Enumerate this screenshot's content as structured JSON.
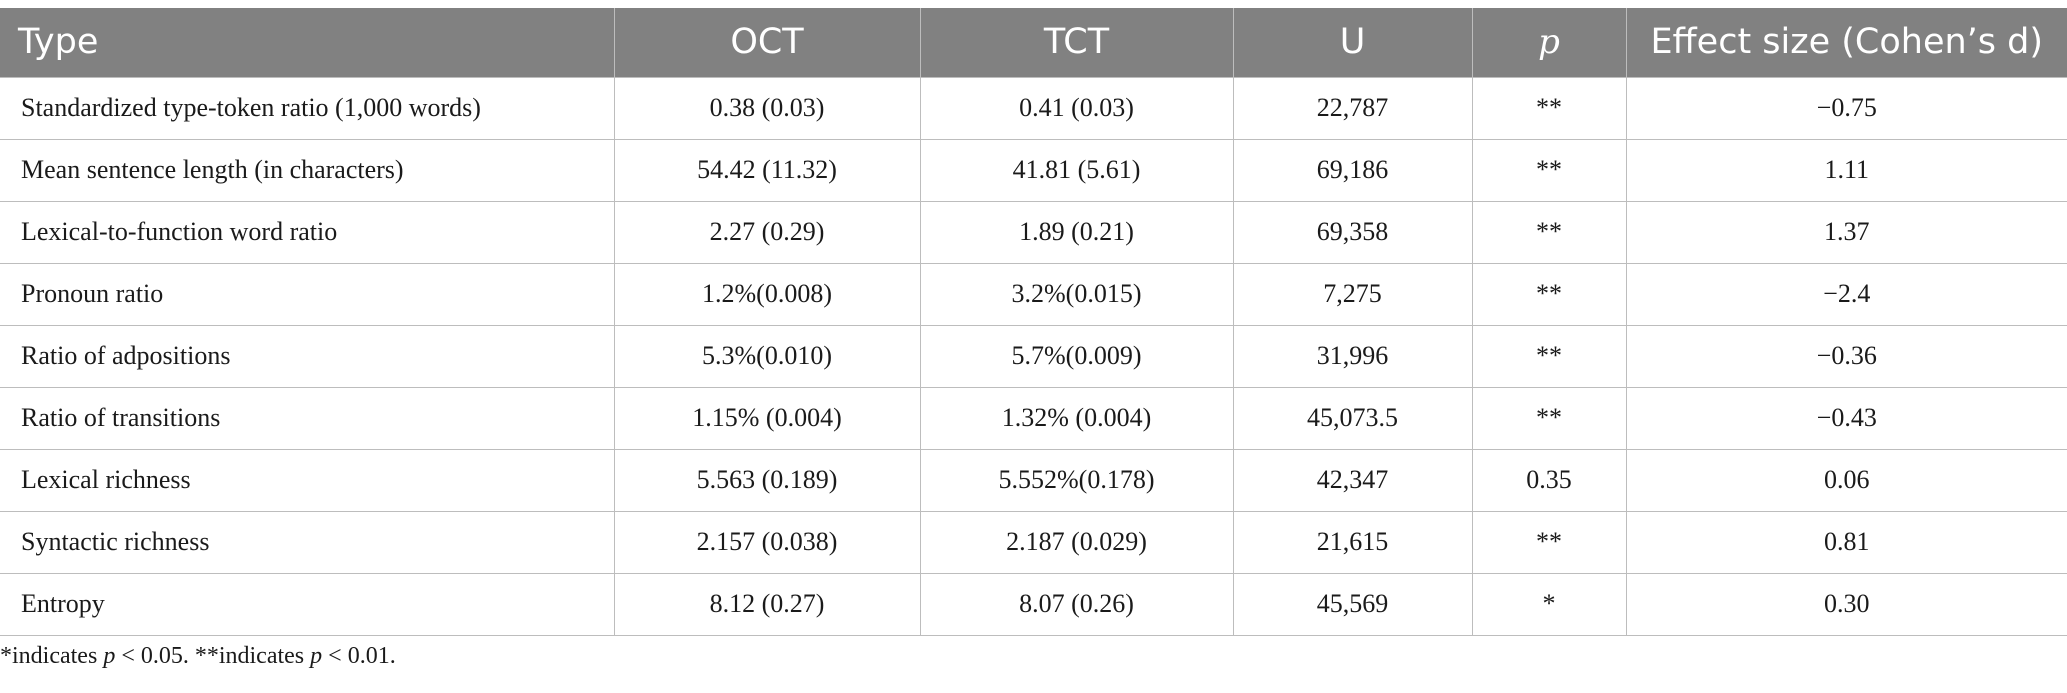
{
  "table": {
    "headers": [
      "Type",
      "OCT",
      "TCT",
      "U",
      "p",
      "Effect size (Cohen’s d)"
    ],
    "rows": [
      [
        "Standardized type-token ratio (1,000 words)",
        "0.38 (0.03)",
        "0.41 (0.03)",
        "22,787",
        "**",
        "−0.75"
      ],
      [
        "Mean sentence length (in characters)",
        "54.42 (11.32)",
        "41.81 (5.61)",
        "69,186",
        "**",
        "1.11"
      ],
      [
        "Lexical-to-function word ratio",
        "2.27 (0.29)",
        "1.89 (0.21)",
        "69,358",
        "**",
        "1.37"
      ],
      [
        "Pronoun ratio",
        "1.2%(0.008)",
        "3.2%(0.015)",
        "7,275",
        "**",
        "−2.4"
      ],
      [
        "Ratio of adpositions",
        "5.3%(0.010)",
        "5.7%(0.009)",
        "31,996",
        "**",
        "−0.36"
      ],
      [
        "Ratio of transitions",
        "1.15% (0.004)",
        "1.32% (0.004)",
        "45,073.5",
        "**",
        "−0.43"
      ],
      [
        "Lexical richness",
        "5.563 (0.189)",
        "5.552%(0.178)",
        "42,347",
        "0.35",
        "0.06"
      ],
      [
        "Syntactic richness",
        "2.157 (0.038)",
        "2.187 (0.029)",
        "21,615",
        "**",
        "0.81"
      ],
      [
        "Entropy",
        "8.12 (0.27)",
        "8.07 (0.26)",
        "45,569",
        "*",
        "0.30"
      ]
    ]
  },
  "footnote": {
    "part1": "*indicates ",
    "p1": "p",
    "part2": " < 0.05. **indicates ",
    "p2": "p",
    "part3": " < 0.01."
  },
  "colors": {
    "header_bg": "#818181",
    "header_text": "#ffffff",
    "grid": "#bdbdbd"
  }
}
